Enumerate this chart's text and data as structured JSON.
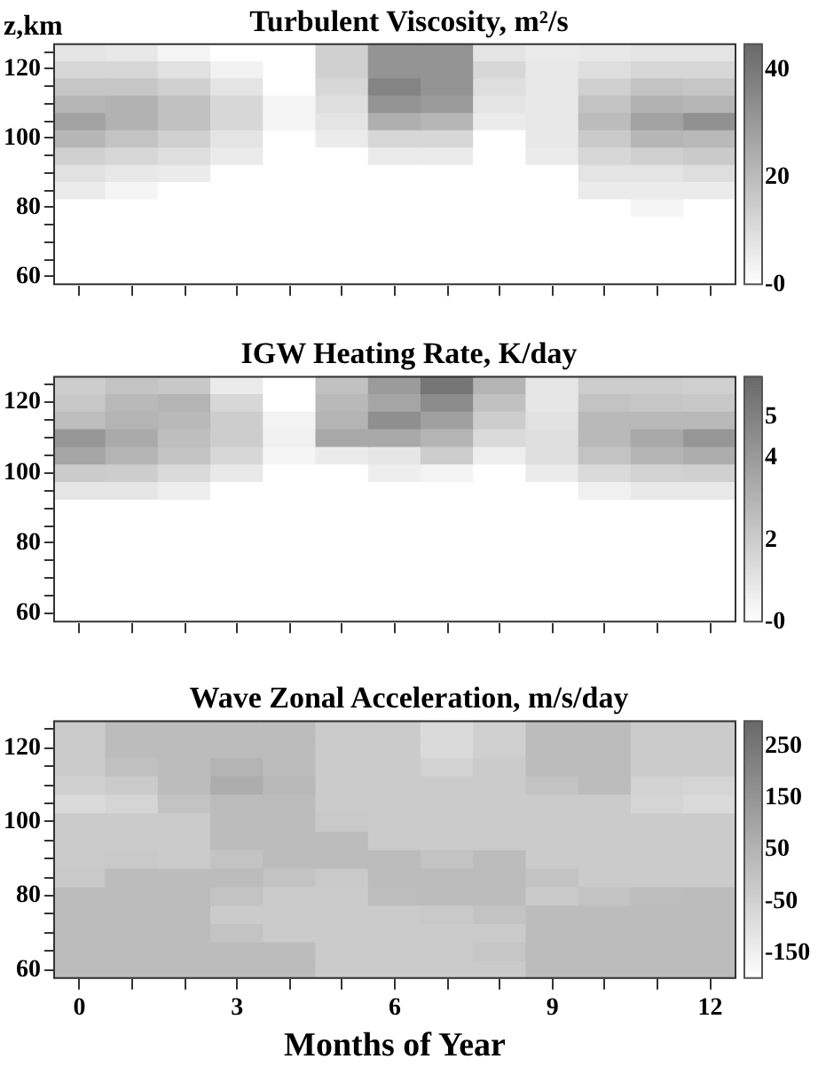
{
  "chart_data": [
    {
      "type": "heatmap",
      "title": "Turbulent Viscosity, m²/s",
      "ylabel": "z,km",
      "tick_labels": "y",
      "categories": [
        "0",
        null,
        null,
        "3",
        null,
        null,
        "6",
        null,
        null,
        "9",
        null,
        null,
        "12"
      ],
      "y_categories": [
        null,
        "120",
        null,
        null,
        null,
        "100",
        null,
        null,
        null,
        "80",
        null,
        null,
        null,
        "60"
      ],
      "cells": [
        [
          8,
          7,
          3,
          0,
          0,
          14,
          32,
          32,
          8,
          6,
          7,
          8,
          8
        ],
        [
          12,
          12,
          9,
          4,
          0,
          14,
          32,
          32,
          12,
          7,
          10,
          12,
          12
        ],
        [
          17,
          17,
          14,
          8,
          0,
          12,
          37,
          32,
          10,
          7,
          14,
          18,
          17
        ],
        [
          22,
          23,
          19,
          12,
          3,
          10,
          32,
          30,
          8,
          7,
          18,
          23,
          22
        ],
        [
          28,
          23,
          19,
          12,
          3,
          8,
          24,
          22,
          6,
          7,
          20,
          28,
          33
        ],
        [
          22,
          18,
          14,
          8,
          0,
          6,
          12,
          12,
          0,
          7,
          16,
          22,
          21
        ],
        [
          14,
          12,
          10,
          6,
          0,
          0,
          6,
          6,
          0,
          6,
          12,
          14,
          16
        ],
        [
          9,
          7,
          6,
          0,
          0,
          0,
          0,
          0,
          0,
          0,
          8,
          8,
          10
        ],
        [
          6,
          3,
          0,
          0,
          0,
          0,
          0,
          0,
          0,
          0,
          6,
          6,
          6
        ],
        [
          0,
          0,
          0,
          0,
          0,
          0,
          0,
          0,
          0,
          0,
          0,
          3,
          0
        ],
        [
          0,
          0,
          0,
          0,
          0,
          0,
          0,
          0,
          0,
          0,
          0,
          0,
          0
        ],
        [
          0,
          0,
          0,
          0,
          0,
          0,
          0,
          0,
          0,
          0,
          0,
          0,
          0
        ],
        [
          0,
          0,
          0,
          0,
          0,
          0,
          0,
          0,
          0,
          0,
          0,
          0,
          0
        ],
        [
          0,
          0,
          0,
          0,
          0,
          0,
          0,
          0,
          0,
          0,
          0,
          0,
          0
        ]
      ],
      "clim": [
        0,
        45
      ],
      "cticks": [
        {
          "value": 0,
          "label": "-0"
        },
        20,
        40
      ]
    },
    {
      "type": "heatmap",
      "title": "IGW Heating Rate, K/day",
      "tick_labels": "y",
      "categories": [
        "0",
        null,
        null,
        "3",
        null,
        null,
        "6",
        null,
        null,
        "9",
        null,
        null,
        "12"
      ],
      "y_categories": [
        null,
        "120",
        null,
        null,
        null,
        "100",
        null,
        null,
        null,
        "80",
        null,
        null,
        null,
        "60"
      ],
      "cells": [
        [
          2.0,
          2.4,
          2.2,
          0.8,
          0,
          2.5,
          4.0,
          5.5,
          3.0,
          1.0,
          2.0,
          2.0,
          1.9
        ],
        [
          2.2,
          2.8,
          3.0,
          1.6,
          0,
          2.8,
          3.6,
          4.6,
          2.5,
          1.0,
          2.4,
          2.3,
          2.2
        ],
        [
          2.6,
          3.0,
          2.8,
          2.0,
          0.5,
          3.0,
          4.5,
          3.8,
          2.0,
          1.2,
          2.8,
          2.8,
          2.8
        ],
        [
          4.2,
          3.4,
          2.6,
          2.0,
          0.6,
          3.5,
          3.5,
          3.0,
          1.5,
          1.3,
          2.8,
          3.5,
          4.2
        ],
        [
          3.6,
          3.0,
          2.4,
          1.6,
          0.4,
          0.8,
          1.0,
          2.0,
          0.7,
          1.3,
          2.4,
          3.0,
          3.3
        ],
        [
          2.1,
          2.0,
          1.5,
          0.9,
          0,
          0,
          0.7,
          0.5,
          0,
          0.8,
          1.5,
          1.8,
          1.9
        ],
        [
          1.0,
          1.0,
          0.7,
          0,
          0,
          0,
          0,
          0,
          0,
          0,
          0.6,
          0.9,
          0.9
        ],
        [
          0,
          0,
          0,
          0,
          0,
          0,
          0,
          0,
          0,
          0,
          0,
          0,
          0
        ],
        [
          0,
          0,
          0,
          0,
          0,
          0,
          0,
          0,
          0,
          0,
          0,
          0,
          0
        ],
        [
          0,
          0,
          0,
          0,
          0,
          0,
          0,
          0,
          0,
          0,
          0,
          0,
          0
        ],
        [
          0,
          0,
          0,
          0,
          0,
          0,
          0,
          0,
          0,
          0,
          0,
          0,
          0
        ],
        [
          0,
          0,
          0,
          0,
          0,
          0,
          0,
          0,
          0,
          0,
          0,
          0,
          0
        ],
        [
          0,
          0,
          0,
          0,
          0,
          0,
          0,
          0,
          0,
          0,
          0,
          0,
          0
        ],
        [
          0,
          0,
          0,
          0,
          0,
          0,
          0,
          0,
          0,
          0,
          0,
          0,
          0
        ]
      ],
      "clim": [
        0,
        6
      ],
      "cticks": [
        {
          "value": 0,
          "label": "-0"
        },
        2,
        4,
        5
      ]
    },
    {
      "type": "heatmap",
      "title": "Wave Zonal Acceleration, m/s/day",
      "xlabel": "Months of Year",
      "categories": [
        "0",
        null,
        null,
        "3",
        null,
        null,
        "6",
        null,
        null,
        "9",
        null,
        null,
        "12"
      ],
      "y_categories": [
        null,
        "120",
        null,
        null,
        null,
        "100",
        null,
        null,
        null,
        "80",
        null,
        null,
        null,
        "60"
      ],
      "cells": [
        [
          -25,
          25,
          25,
          25,
          25,
          -25,
          -25,
          -75,
          -40,
          25,
          25,
          -25,
          -25
        ],
        [
          -25,
          25,
          25,
          25,
          25,
          -25,
          -25,
          -75,
          -40,
          25,
          25,
          -25,
          -25
        ],
        [
          -25,
          10,
          25,
          50,
          25,
          -25,
          -25,
          -50,
          -25,
          25,
          25,
          -25,
          -25
        ],
        [
          -40,
          -25,
          25,
          75,
          35,
          -25,
          -25,
          -25,
          -25,
          0,
          25,
          -50,
          -60
        ],
        [
          -75,
          -60,
          0,
          25,
          25,
          -25,
          -25,
          -25,
          -25,
          -25,
          -25,
          -60,
          -75
        ],
        [
          -25,
          -25,
          -25,
          25,
          25,
          -20,
          -25,
          -25,
          -25,
          -25,
          -25,
          -25,
          -25
        ],
        [
          -25,
          -25,
          -25,
          25,
          25,
          25,
          -25,
          -25,
          -25,
          -25,
          -25,
          -25,
          -25
        ],
        [
          -25,
          -20,
          -25,
          0,
          25,
          25,
          25,
          0,
          25,
          -25,
          -25,
          -25,
          -25
        ],
        [
          -20,
          25,
          25,
          25,
          0,
          -20,
          25,
          25,
          25,
          0,
          -25,
          -25,
          -25
        ],
        [
          25,
          25,
          25,
          0,
          -25,
          -25,
          20,
          25,
          25,
          -20,
          0,
          20,
          25
        ],
        [
          25,
          25,
          25,
          -25,
          -25,
          -25,
          -25,
          -20,
          0,
          25,
          25,
          25,
          25
        ],
        [
          25,
          25,
          25,
          0,
          -25,
          -25,
          -25,
          -25,
          -25,
          25,
          25,
          25,
          25
        ],
        [
          25,
          25,
          25,
          25,
          25,
          -25,
          -25,
          -25,
          -10,
          25,
          25,
          25,
          25
        ],
        [
          25,
          25,
          25,
          25,
          25,
          -25,
          -25,
          -25,
          -25,
          25,
          25,
          25,
          25
        ]
      ],
      "clim": [
        -200,
        300
      ],
      "cticks": [
        -150,
        -50,
        50,
        150,
        250
      ]
    }
  ]
}
